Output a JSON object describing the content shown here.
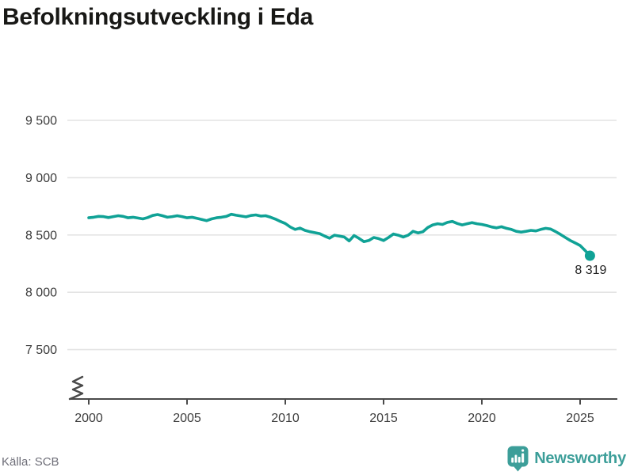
{
  "title": "Befolkningsutveckling i Eda",
  "source": "Källa: SCB",
  "logo": {
    "text": "Newsworthy",
    "icon": "newsworthy-bubble-chart-icon"
  },
  "colors": {
    "line": "#10a296",
    "point": "#10a296",
    "grid": "#e4e4e4",
    "axis": "#4a4a4a",
    "tick_text": "#3c3c3c",
    "title": "#181816",
    "source": "#6e6e78",
    "logo": "#3c9e99",
    "point_label": "#222222"
  },
  "chart_data": {
    "type": "line",
    "title": "Befolkningsutveckling i Eda",
    "xlabel": "",
    "ylabel": "",
    "x_ticks": [
      2000,
      2005,
      2010,
      2015,
      2020,
      2025
    ],
    "y_ticks": [
      9500,
      9000,
      8500,
      8000,
      7500
    ],
    "y_tick_labels": [
      "9 500",
      "9 000",
      "8 500",
      "8 000",
      "7 500"
    ],
    "axis_break": true,
    "grid": "horizontal-only",
    "legend": "none",
    "last_value": 8319,
    "last_point_label": "8 319",
    "series": [
      {
        "name": "Befolkning i Eda (kvartal)",
        "points": [
          [
            2000.0,
            8650
          ],
          [
            2000.25,
            8655
          ],
          [
            2000.5,
            8662
          ],
          [
            2000.75,
            8660
          ],
          [
            2001.0,
            8652
          ],
          [
            2001.25,
            8660
          ],
          [
            2001.5,
            8668
          ],
          [
            2001.75,
            8662
          ],
          [
            2002.0,
            8650
          ],
          [
            2002.25,
            8655
          ],
          [
            2002.5,
            8648
          ],
          [
            2002.75,
            8640
          ],
          [
            2003.0,
            8652
          ],
          [
            2003.25,
            8670
          ],
          [
            2003.5,
            8678
          ],
          [
            2003.75,
            8668
          ],
          [
            2004.0,
            8655
          ],
          [
            2004.25,
            8660
          ],
          [
            2004.5,
            8668
          ],
          [
            2004.75,
            8660
          ],
          [
            2005.0,
            8650
          ],
          [
            2005.25,
            8655
          ],
          [
            2005.5,
            8645
          ],
          [
            2005.75,
            8635
          ],
          [
            2006.0,
            8625
          ],
          [
            2006.25,
            8640
          ],
          [
            2006.5,
            8650
          ],
          [
            2006.75,
            8655
          ],
          [
            2007.0,
            8662
          ],
          [
            2007.25,
            8680
          ],
          [
            2007.5,
            8672
          ],
          [
            2007.75,
            8665
          ],
          [
            2008.0,
            8658
          ],
          [
            2008.25,
            8670
          ],
          [
            2008.5,
            8675
          ],
          [
            2008.75,
            8665
          ],
          [
            2009.0,
            8668
          ],
          [
            2009.25,
            8655
          ],
          [
            2009.5,
            8638
          ],
          [
            2009.75,
            8618
          ],
          [
            2010.0,
            8600
          ],
          [
            2010.25,
            8570
          ],
          [
            2010.5,
            8548
          ],
          [
            2010.75,
            8560
          ],
          [
            2011.0,
            8540
          ],
          [
            2011.25,
            8528
          ],
          [
            2011.5,
            8520
          ],
          [
            2011.75,
            8512
          ],
          [
            2012.0,
            8490
          ],
          [
            2012.25,
            8472
          ],
          [
            2012.5,
            8498
          ],
          [
            2012.75,
            8490
          ],
          [
            2013.0,
            8482
          ],
          [
            2013.25,
            8448
          ],
          [
            2013.5,
            8495
          ],
          [
            2013.75,
            8470
          ],
          [
            2014.0,
            8442
          ],
          [
            2014.25,
            8452
          ],
          [
            2014.5,
            8478
          ],
          [
            2014.75,
            8468
          ],
          [
            2015.0,
            8452
          ],
          [
            2015.25,
            8478
          ],
          [
            2015.5,
            8508
          ],
          [
            2015.75,
            8498
          ],
          [
            2016.0,
            8482
          ],
          [
            2016.25,
            8498
          ],
          [
            2016.5,
            8532
          ],
          [
            2016.75,
            8518
          ],
          [
            2017.0,
            8528
          ],
          [
            2017.25,
            8565
          ],
          [
            2017.5,
            8588
          ],
          [
            2017.75,
            8598
          ],
          [
            2018.0,
            8592
          ],
          [
            2018.25,
            8610
          ],
          [
            2018.5,
            8618
          ],
          [
            2018.75,
            8600
          ],
          [
            2019.0,
            8588
          ],
          [
            2019.25,
            8598
          ],
          [
            2019.5,
            8608
          ],
          [
            2019.75,
            8598
          ],
          [
            2020.0,
            8592
          ],
          [
            2020.25,
            8582
          ],
          [
            2020.5,
            8570
          ],
          [
            2020.75,
            8562
          ],
          [
            2021.0,
            8572
          ],
          [
            2021.25,
            8558
          ],
          [
            2021.5,
            8548
          ],
          [
            2021.75,
            8532
          ],
          [
            2022.0,
            8525
          ],
          [
            2022.25,
            8532
          ],
          [
            2022.5,
            8540
          ],
          [
            2022.75,
            8535
          ],
          [
            2023.0,
            8548
          ],
          [
            2023.25,
            8558
          ],
          [
            2023.5,
            8552
          ],
          [
            2023.75,
            8530
          ],
          [
            2024.0,
            8505
          ],
          [
            2024.25,
            8478
          ],
          [
            2024.5,
            8452
          ],
          [
            2024.75,
            8430
          ],
          [
            2025.0,
            8408
          ],
          [
            2025.25,
            8365
          ],
          [
            2025.5,
            8319
          ]
        ]
      }
    ]
  }
}
